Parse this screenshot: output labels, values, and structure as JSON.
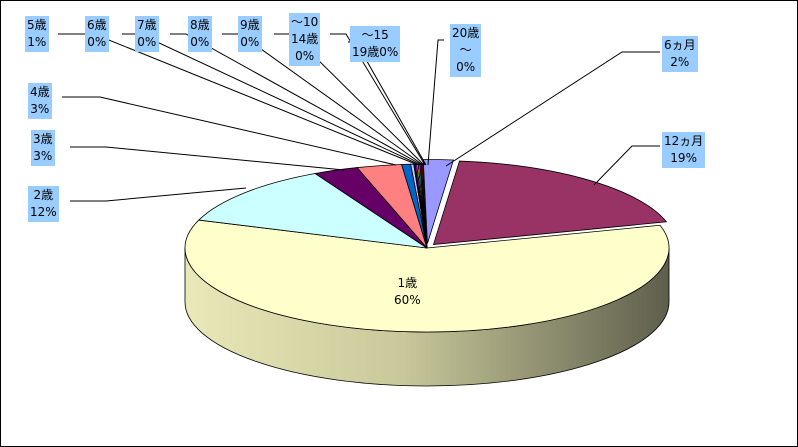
{
  "chart_data": {
    "type": "pie",
    "style": "3d-exploded",
    "title": "",
    "legend": "none",
    "slices": [
      {
        "label": "6ヵ月",
        "percent_label": "2%",
        "value": 2,
        "color": "#9999ff"
      },
      {
        "label": "12ヵ月",
        "percent_label": "19%",
        "value": 19,
        "color": "#993366"
      },
      {
        "label": "1歳",
        "percent_label": "60%",
        "value": 60,
        "color": "#ffffcc"
      },
      {
        "label": "2歳",
        "percent_label": "12%",
        "value": 12,
        "color": "#ccffff"
      },
      {
        "label": "3歳",
        "percent_label": "3%",
        "value": 3,
        "color": "#660066"
      },
      {
        "label": "4歳",
        "percent_label": "3%",
        "value": 3,
        "color": "#ff8080"
      },
      {
        "label": "5歳",
        "percent_label": "1%",
        "value": 0.6,
        "color": "#0066cc"
      },
      {
        "label": "6歳",
        "percent_label": "0%",
        "value": 0.2,
        "color": "#ccccff"
      },
      {
        "label": "7歳",
        "percent_label": "0%",
        "value": 0.1,
        "color": "#000080"
      },
      {
        "label": "8歳",
        "percent_label": "0%",
        "value": 0.1,
        "color": "#ff00ff"
      },
      {
        "label": "9歳",
        "percent_label": "0%",
        "value": 0.1,
        "color": "#ffff00"
      },
      {
        "label": "〜10 14歳",
        "percent_label": "0%",
        "value": 0.1,
        "color": "#00ffff"
      },
      {
        "label": "〜15 19歳",
        "percent_label": "0%",
        "value": 0.1,
        "color": "#800080"
      },
      {
        "label": "20歳〜",
        "percent_label": "0%",
        "value": 0.1,
        "color": "#800000"
      }
    ]
  }
}
